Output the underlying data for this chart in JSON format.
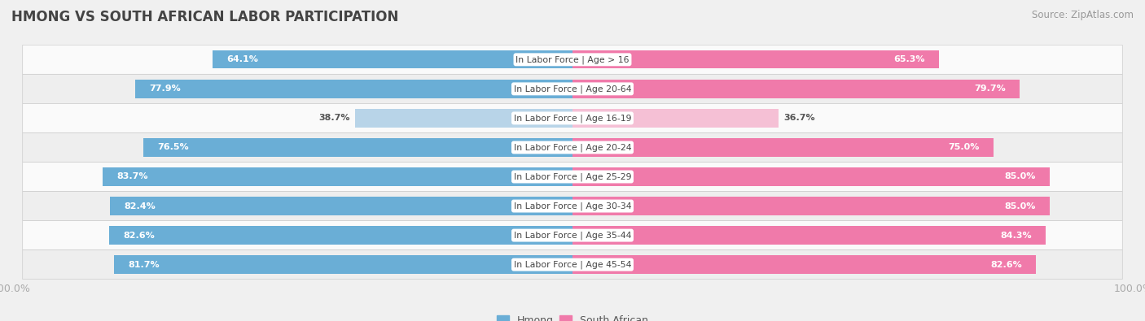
{
  "title": "HMONG VS SOUTH AFRICAN LABOR PARTICIPATION",
  "source": "Source: ZipAtlas.com",
  "categories": [
    "In Labor Force | Age > 16",
    "In Labor Force | Age 20-64",
    "In Labor Force | Age 16-19",
    "In Labor Force | Age 20-24",
    "In Labor Force | Age 25-29",
    "In Labor Force | Age 30-34",
    "In Labor Force | Age 35-44",
    "In Labor Force | Age 45-54"
  ],
  "hmong_values": [
    64.1,
    77.9,
    38.7,
    76.5,
    83.7,
    82.4,
    82.6,
    81.7
  ],
  "sa_values": [
    65.3,
    79.7,
    36.7,
    75.0,
    85.0,
    85.0,
    84.3,
    82.6
  ],
  "hmong_color": "#6aaed6",
  "hmong_color_light": "#b8d4e8",
  "sa_color": "#f07aaa",
  "sa_color_light": "#f5c0d5",
  "bar_height": 0.62,
  "bg_color": "#f0f0f0",
  "row_bg_white": "#fafafa",
  "row_bg_gray": "#eeeeee",
  "label_color_dark": "#555555",
  "axis_label_color": "#aaaaaa",
  "title_color": "#444444",
  "source_color": "#999999"
}
